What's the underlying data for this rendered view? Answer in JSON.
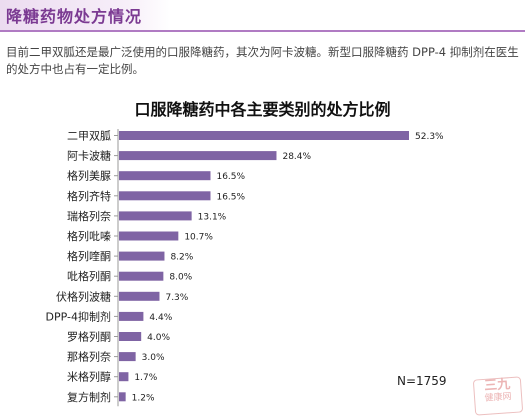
{
  "header": {
    "title": "降糖药物处方情况"
  },
  "intro": {
    "text": "目前二甲双胍还是最广泛使用的口服降糖药，其次为阿卡波糖。新型口服降糖药 DPP-4 抑制剂在医生的处方中也占有一定比例。"
  },
  "watermark": {
    "line1": "三九",
    "line2": "健康网"
  },
  "colors": {
    "bar": "#7f64a4",
    "axis": "#999999",
    "title_accent": "#7b3a92"
  },
  "chart_data": {
    "type": "bar",
    "orientation": "horizontal",
    "title": "口服降糖药中各主要类别的处方比例",
    "categories": [
      "二甲双胍",
      "阿卡波糖",
      "格列美脲",
      "格列齐特",
      "瑞格列奈",
      "格列吡嗪",
      "格列喹酮",
      "吡格列酮",
      "伏格列波糖",
      "DPP-4抑制剂",
      "罗格列酮",
      "那格列奈",
      "米格列醇",
      "复方制剂"
    ],
    "values": [
      52.3,
      28.4,
      16.5,
      16.5,
      13.1,
      10.7,
      8.2,
      8.0,
      7.3,
      4.4,
      4.0,
      3.0,
      1.7,
      1.2
    ],
    "value_labels": [
      "52.3%",
      "28.4%",
      "16.5%",
      "16.5%",
      "13.1%",
      "10.7%",
      "8.2%",
      "8.0%",
      "7.3%",
      "4.4%",
      "4.0%",
      "3.0%",
      "1.7%",
      "1.2%"
    ],
    "xlim": [
      0,
      52.3
    ],
    "xlabel": "",
    "ylabel": "",
    "grid": false,
    "annotation": "N=1759"
  }
}
